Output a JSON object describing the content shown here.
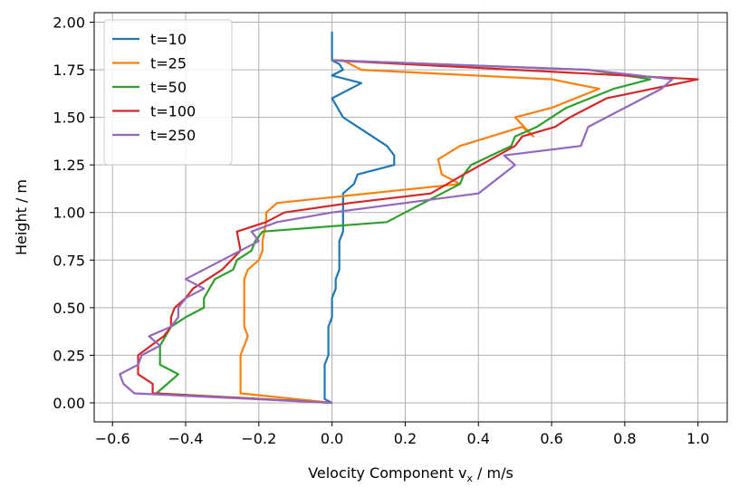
{
  "chart_data": {
    "type": "line",
    "title": "",
    "xlabel": "Velocity Component",
    "xlabel_symbol": "v",
    "xlabel_subscript": "x",
    "xlabel_unit": " / m/s",
    "ylabel": "Height / m",
    "xlim": [
      -0.65,
      1.08
    ],
    "ylim": [
      -0.1,
      2.05
    ],
    "xticks": [
      "−0.6",
      "−0.4",
      "−0.2",
      "0.0",
      "0.2",
      "0.4",
      "0.6",
      "0.8",
      "1.0"
    ],
    "xtick_values": [
      -0.6,
      -0.4,
      -0.2,
      0.0,
      0.2,
      0.4,
      0.6,
      0.8,
      1.0
    ],
    "yticks": [
      "0.00",
      "0.25",
      "0.50",
      "0.75",
      "1.00",
      "1.25",
      "1.50",
      "1.75",
      "2.00"
    ],
    "ytick_values": [
      0.0,
      0.25,
      0.5,
      0.75,
      1.0,
      1.25,
      1.5,
      1.75,
      2.0
    ],
    "grid": true,
    "legend_position": "top-left",
    "series": [
      {
        "name": "t=10",
        "color": "#1f77b4",
        "points": [
          [
            0.0,
            0.0
          ],
          [
            -0.02,
            0.02
          ],
          [
            -0.02,
            0.05
          ],
          [
            -0.02,
            0.1
          ],
          [
            -0.02,
            0.15
          ],
          [
            -0.02,
            0.2
          ],
          [
            -0.01,
            0.25
          ],
          [
            -0.01,
            0.3
          ],
          [
            -0.01,
            0.35
          ],
          [
            -0.01,
            0.4
          ],
          [
            0.0,
            0.45
          ],
          [
            0.0,
            0.5
          ],
          [
            0.0,
            0.55
          ],
          [
            0.01,
            0.6
          ],
          [
            0.01,
            0.65
          ],
          [
            0.02,
            0.7
          ],
          [
            0.02,
            0.75
          ],
          [
            0.02,
            0.8
          ],
          [
            0.02,
            0.85
          ],
          [
            0.03,
            0.9
          ],
          [
            0.03,
            0.95
          ],
          [
            0.03,
            1.0
          ],
          [
            0.03,
            1.05
          ],
          [
            0.03,
            1.1
          ],
          [
            0.06,
            1.15
          ],
          [
            0.07,
            1.2
          ],
          [
            0.17,
            1.25
          ],
          [
            0.17,
            1.3
          ],
          [
            0.15,
            1.35
          ],
          [
            0.07,
            1.45
          ],
          [
            0.03,
            1.5
          ],
          [
            0.0,
            1.6
          ],
          [
            0.08,
            1.68
          ],
          [
            0.0,
            1.72
          ],
          [
            0.03,
            1.75
          ],
          [
            0.02,
            1.78
          ],
          [
            0.0,
            1.8
          ],
          [
            0.0,
            1.85
          ],
          [
            0.0,
            1.95
          ]
        ]
      },
      {
        "name": "t=25",
        "color": "#ff7f0e",
        "points": [
          [
            0.0,
            0.0
          ],
          [
            -0.25,
            0.05
          ],
          [
            -0.25,
            0.1
          ],
          [
            -0.25,
            0.15
          ],
          [
            -0.25,
            0.2
          ],
          [
            -0.25,
            0.25
          ],
          [
            -0.24,
            0.3
          ],
          [
            -0.23,
            0.35
          ],
          [
            -0.24,
            0.4
          ],
          [
            -0.24,
            0.45
          ],
          [
            -0.24,
            0.5
          ],
          [
            -0.24,
            0.55
          ],
          [
            -0.24,
            0.6
          ],
          [
            -0.24,
            0.65
          ],
          [
            -0.23,
            0.7
          ],
          [
            -0.2,
            0.75
          ],
          [
            -0.19,
            0.8
          ],
          [
            -0.19,
            0.85
          ],
          [
            -0.18,
            0.95
          ],
          [
            -0.18,
            1.0
          ],
          [
            -0.15,
            1.05
          ],
          [
            0.35,
            1.15
          ],
          [
            0.3,
            1.2
          ],
          [
            0.29,
            1.28
          ],
          [
            0.35,
            1.35
          ],
          [
            0.52,
            1.45
          ],
          [
            0.55,
            1.4
          ],
          [
            0.5,
            1.5
          ],
          [
            0.6,
            1.55
          ],
          [
            0.73,
            1.65
          ],
          [
            0.6,
            1.7
          ],
          [
            0.08,
            1.75
          ],
          [
            0.03,
            1.8
          ],
          [
            0.0,
            1.8
          ]
        ]
      },
      {
        "name": "t=50",
        "color": "#2ca02c",
        "points": [
          [
            0.0,
            0.0
          ],
          [
            -0.48,
            0.05
          ],
          [
            -0.45,
            0.1
          ],
          [
            -0.42,
            0.15
          ],
          [
            -0.47,
            0.2
          ],
          [
            -0.47,
            0.3
          ],
          [
            -0.44,
            0.4
          ],
          [
            -0.4,
            0.45
          ],
          [
            -0.35,
            0.5
          ],
          [
            -0.35,
            0.55
          ],
          [
            -0.32,
            0.65
          ],
          [
            -0.27,
            0.7
          ],
          [
            -0.26,
            0.75
          ],
          [
            -0.22,
            0.8
          ],
          [
            -0.21,
            0.85
          ],
          [
            -0.19,
            0.9
          ],
          [
            0.15,
            0.95
          ],
          [
            0.2,
            1.0
          ],
          [
            0.35,
            1.15
          ],
          [
            0.36,
            1.2
          ],
          [
            0.38,
            1.25
          ],
          [
            0.49,
            1.35
          ],
          [
            0.5,
            1.4
          ],
          [
            0.56,
            1.45
          ],
          [
            0.64,
            1.55
          ],
          [
            0.77,
            1.65
          ],
          [
            0.87,
            1.7
          ],
          [
            0.7,
            1.75
          ],
          [
            0.0,
            1.8
          ]
        ]
      },
      {
        "name": "t=100",
        "color": "#d62728",
        "points": [
          [
            0.0,
            0.0
          ],
          [
            -0.49,
            0.05
          ],
          [
            -0.49,
            0.1
          ],
          [
            -0.53,
            0.15
          ],
          [
            -0.53,
            0.2
          ],
          [
            -0.53,
            0.25
          ],
          [
            -0.46,
            0.35
          ],
          [
            -0.44,
            0.4
          ],
          [
            -0.44,
            0.45
          ],
          [
            -0.43,
            0.5
          ],
          [
            -0.4,
            0.55
          ],
          [
            -0.38,
            0.6
          ],
          [
            -0.3,
            0.7
          ],
          [
            -0.25,
            0.8
          ],
          [
            -0.26,
            0.9
          ],
          [
            -0.18,
            0.95
          ],
          [
            -0.13,
            1.0
          ],
          [
            0.05,
            1.05
          ],
          [
            0.27,
            1.1
          ],
          [
            0.36,
            1.2
          ],
          [
            0.5,
            1.35
          ],
          [
            0.52,
            1.4
          ],
          [
            0.61,
            1.45
          ],
          [
            0.65,
            1.5
          ],
          [
            0.75,
            1.6
          ],
          [
            1.0,
            1.7
          ],
          [
            0.0,
            1.8
          ]
        ]
      },
      {
        "name": "t=250",
        "color": "#9467bd",
        "points": [
          [
            0.0,
            0.0
          ],
          [
            -0.54,
            0.05
          ],
          [
            -0.57,
            0.1
          ],
          [
            -0.58,
            0.15
          ],
          [
            -0.53,
            0.2
          ],
          [
            -0.52,
            0.25
          ],
          [
            -0.47,
            0.3
          ],
          [
            -0.5,
            0.35
          ],
          [
            -0.44,
            0.4
          ],
          [
            -0.42,
            0.45
          ],
          [
            -0.42,
            0.5
          ],
          [
            -0.4,
            0.55
          ],
          [
            -0.35,
            0.6
          ],
          [
            -0.4,
            0.65
          ],
          [
            -0.35,
            0.7
          ],
          [
            -0.3,
            0.75
          ],
          [
            -0.2,
            0.85
          ],
          [
            -0.22,
            0.9
          ],
          [
            -0.15,
            0.95
          ],
          [
            0.0,
            1.0
          ],
          [
            0.4,
            1.1
          ],
          [
            0.5,
            1.25
          ],
          [
            0.47,
            1.3
          ],
          [
            0.68,
            1.35
          ],
          [
            0.7,
            1.45
          ],
          [
            0.8,
            1.55
          ],
          [
            0.9,
            1.65
          ],
          [
            0.93,
            1.7
          ],
          [
            0.7,
            1.75
          ],
          [
            0.0,
            1.8
          ]
        ]
      }
    ]
  }
}
